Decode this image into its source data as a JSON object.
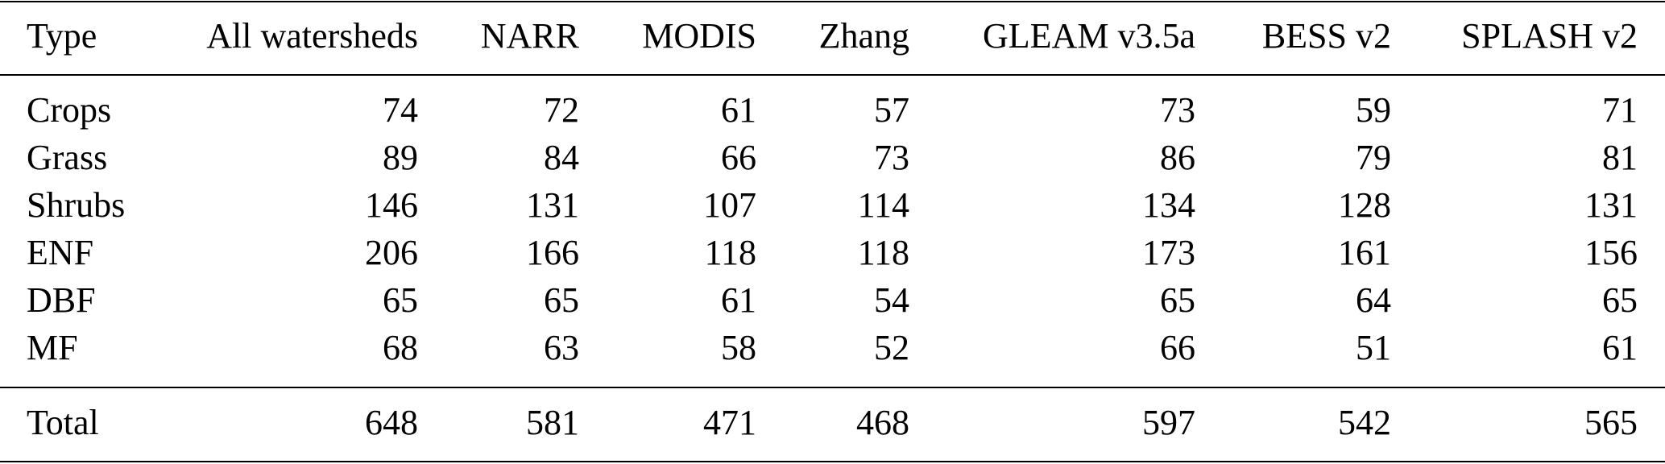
{
  "table": {
    "columns": [
      "Type",
      "All watersheds",
      "NARR",
      "MODIS",
      "Zhang",
      "GLEAM v3.5a",
      "BESS v2",
      "SPLASH v2"
    ],
    "rows": [
      [
        "Crops",
        "74",
        "72",
        "61",
        "57",
        "73",
        "59",
        "71"
      ],
      [
        "Grass",
        "89",
        "84",
        "66",
        "73",
        "86",
        "79",
        "81"
      ],
      [
        "Shrubs",
        "146",
        "131",
        "107",
        "114",
        "134",
        "128",
        "131"
      ],
      [
        "ENF",
        "206",
        "166",
        "118",
        "118",
        "173",
        "161",
        "156"
      ],
      [
        "DBF",
        "65",
        "65",
        "61",
        "54",
        "65",
        "64",
        "65"
      ],
      [
        "MF",
        "68",
        "63",
        "58",
        "52",
        "66",
        "51",
        "61"
      ]
    ],
    "total": [
      "Total",
      "648",
      "581",
      "471",
      "468",
      "597",
      "542",
      "565"
    ]
  }
}
